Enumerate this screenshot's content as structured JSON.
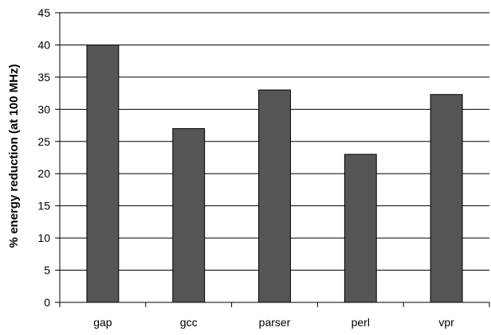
{
  "chart_data": {
    "type": "bar",
    "title": "",
    "xlabel": "",
    "ylabel": "% energy reduction (at 100 MHz)",
    "categories": [
      "gap",
      "gcc",
      "parser",
      "perl",
      "vpr"
    ],
    "values": [
      40,
      27,
      33,
      23,
      32.3
    ],
    "ylim": [
      0,
      45
    ],
    "yticks": [
      0,
      5,
      10,
      15,
      20,
      25,
      30,
      35,
      40,
      45
    ],
    "grid": true,
    "bar_color": "#555555",
    "legend": "none"
  }
}
